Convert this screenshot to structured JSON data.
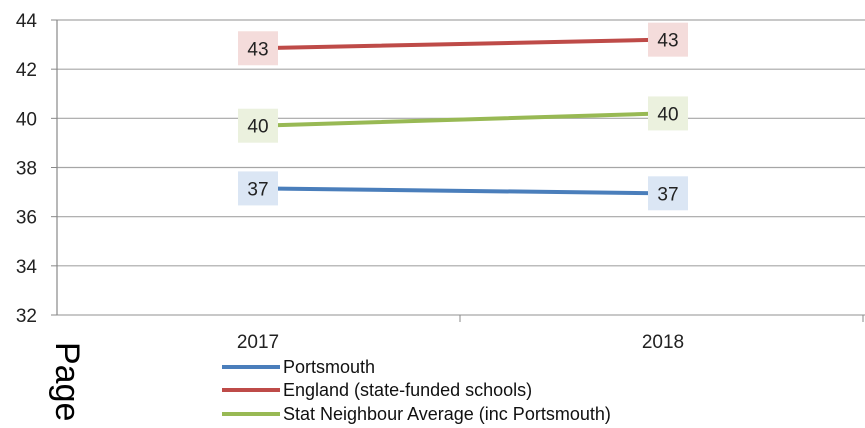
{
  "chart_data": {
    "type": "line",
    "categories": [
      "2017",
      "2018"
    ],
    "series": [
      {
        "name": "Portsmouth",
        "values": [
          37.15,
          36.95
        ],
        "labels": [
          "37",
          "37"
        ],
        "color": "#4a7ebb",
        "label_bg": "#dbe6f4"
      },
      {
        "name": "England (state-funded schools)",
        "values": [
          42.85,
          43.2
        ],
        "labels": [
          "43",
          "43"
        ],
        "color": "#be4b48",
        "label_bg": "#f4dcdb"
      },
      {
        "name": "Stat Neighbour Average (inc Portsmouth)",
        "values": [
          39.7,
          40.2
        ],
        "labels": [
          "40",
          "40"
        ],
        "color": "#98b954",
        "label_bg": "#ebf1de"
      }
    ],
    "yticks": [
      "32",
      "34",
      "36",
      "38",
      "40",
      "42",
      "44"
    ],
    "ylim": [
      32,
      44
    ],
    "grid": true,
    "legend_position": "bottom"
  },
  "page_footer_text": "Page"
}
